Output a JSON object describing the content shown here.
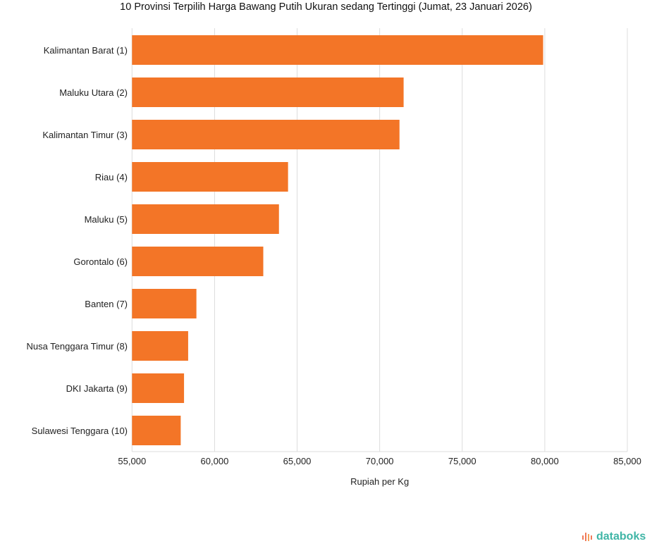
{
  "chart_data": {
    "type": "bar",
    "orientation": "horizontal",
    "title": "10 Provinsi Terpilih Harga Bawang Putih Ukuran sedang Tertinggi (Jumat, 23 Januari 2026)",
    "xlabel": "Rupiah per Kg",
    "ylabel": "",
    "categories": [
      "Kalimantan Barat (1)",
      "Maluku Utara (2)",
      "Kalimantan Timur (3)",
      "Riau (4)",
      "Maluku (5)",
      "Gorontalo (6)",
      "Banten (7)",
      "Nusa Tenggara Timur (8)",
      "DKI Jakarta (9)",
      "Sulawesi Tenggara (10)"
    ],
    "values": [
      79900,
      71450,
      71200,
      64450,
      63900,
      62950,
      58900,
      58400,
      58150,
      57950
    ],
    "xlim": [
      55000,
      85000
    ],
    "xticks": [
      55000,
      60000,
      65000,
      70000,
      75000,
      80000,
      85000
    ],
    "xtick_labels": [
      "55,000",
      "60,000",
      "65,000",
      "70,000",
      "75,000",
      "80,000",
      "85,000"
    ],
    "grid": true,
    "bar_color": "#f37527"
  },
  "brand": {
    "logo_text": "databoks",
    "logo_color": "#3fb5a6"
  }
}
